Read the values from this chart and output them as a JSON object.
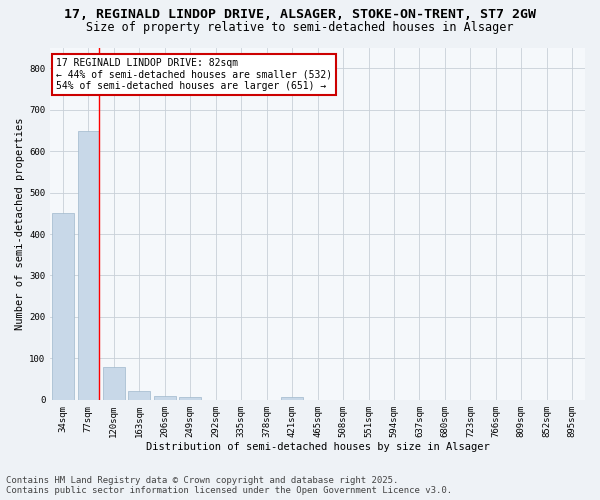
{
  "title_line1": "17, REGINALD LINDOP DRIVE, ALSAGER, STOKE-ON-TRENT, ST7 2GW",
  "title_line2": "Size of property relative to semi-detached houses in Alsager",
  "xlabel": "Distribution of semi-detached houses by size in Alsager",
  "ylabel": "Number of semi-detached properties",
  "categories": [
    "34sqm",
    "77sqm",
    "120sqm",
    "163sqm",
    "206sqm",
    "249sqm",
    "292sqm",
    "335sqm",
    "378sqm",
    "421sqm",
    "465sqm",
    "508sqm",
    "551sqm",
    "594sqm",
    "637sqm",
    "680sqm",
    "723sqm",
    "766sqm",
    "809sqm",
    "852sqm",
    "895sqm"
  ],
  "values": [
    450,
    648,
    80,
    22,
    10,
    7,
    0,
    0,
    0,
    7,
    0,
    0,
    0,
    0,
    0,
    0,
    0,
    0,
    0,
    0,
    0
  ],
  "bar_color": "#c8d8e8",
  "bar_edge_color": "#a0b8cc",
  "red_line_index": 1,
  "property_size": 82,
  "annotation_line1": "17 REGINALD LINDOP DRIVE: 82sqm",
  "annotation_line2": "← 44% of semi-detached houses are smaller (532)",
  "annotation_line3": "54% of semi-detached houses are larger (651) →",
  "annotation_box_color": "#ffffff",
  "annotation_box_edgecolor": "#cc0000",
  "ylim": [
    0,
    850
  ],
  "yticks": [
    0,
    100,
    200,
    300,
    400,
    500,
    600,
    700,
    800
  ],
  "footer_line1": "Contains HM Land Registry data © Crown copyright and database right 2025.",
  "footer_line2": "Contains public sector information licensed under the Open Government Licence v3.0.",
  "bg_color": "#eef2f6",
  "plot_bg_color": "#f5f8fb",
  "grid_color": "#c8d0d8",
  "title_fontsize": 9.5,
  "subtitle_fontsize": 8.5,
  "axis_label_fontsize": 7.5,
  "tick_fontsize": 6.5,
  "footer_fontsize": 6.5,
  "annotation_fontsize": 7
}
